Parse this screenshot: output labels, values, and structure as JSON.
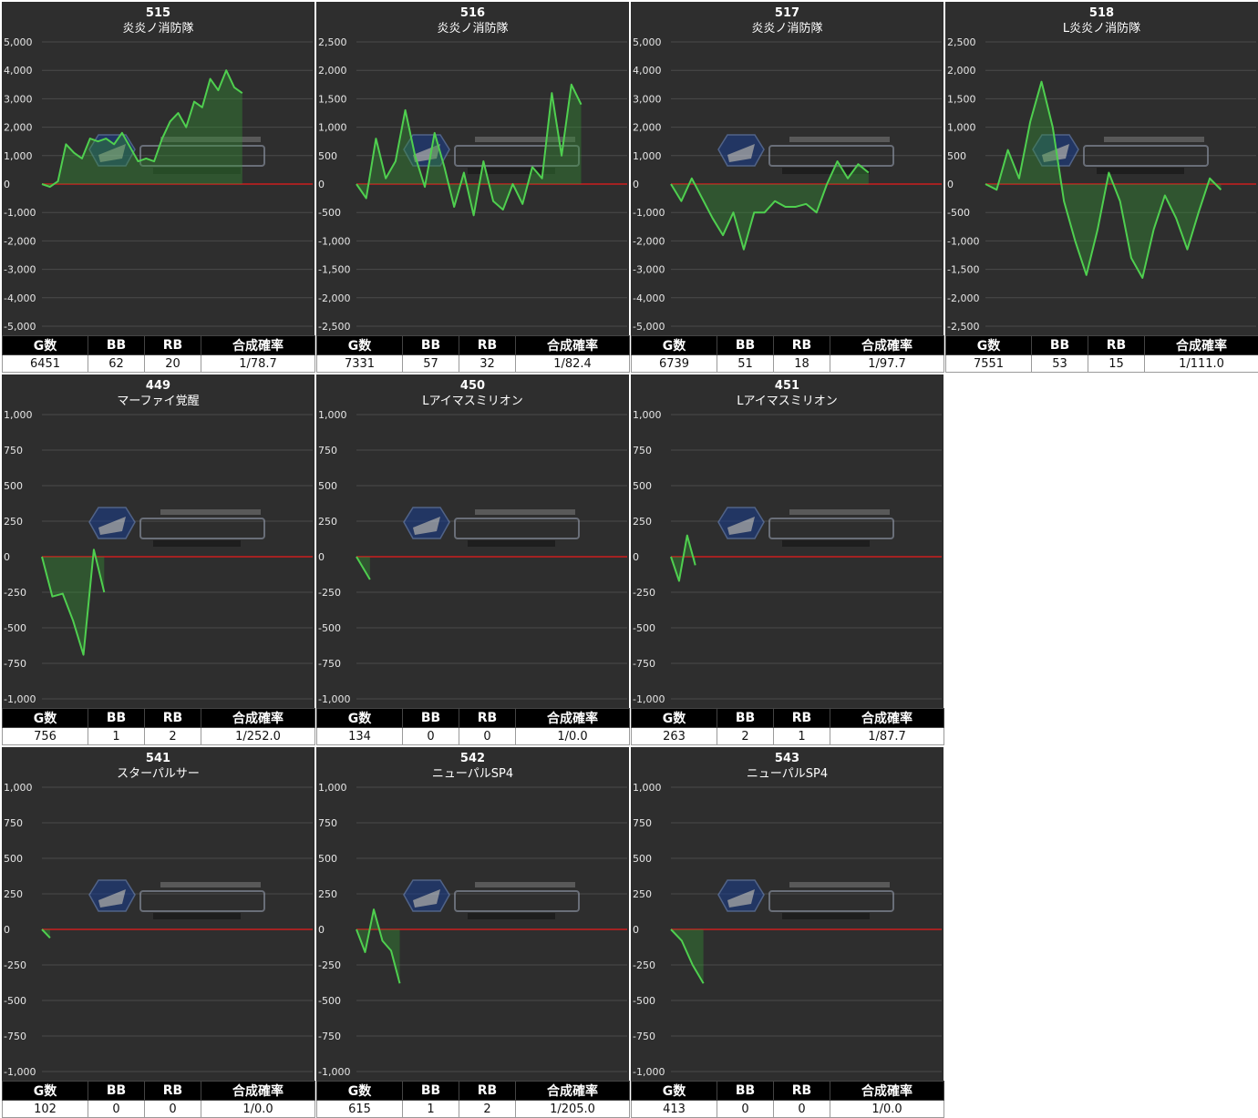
{
  "headers": {
    "games": "G数",
    "bb": "BB",
    "rb": "RB",
    "prob": "合成確率"
  },
  "chart_data": [
    {
      "type": "area",
      "unit": "515",
      "title": "炎炎ノ消防隊",
      "ylim": [
        -5000,
        5000
      ],
      "yticks": [
        5000,
        4000,
        3000,
        2000,
        1000,
        0,
        -1000,
        -2000,
        -3000,
        -4000,
        -5000
      ],
      "tick_labels": [
        "5,000",
        "4,000",
        "3,000",
        "2,000",
        "1,000",
        "0",
        "-1,000",
        "-2,000",
        "-3,000",
        "-4,000",
        "-5,000"
      ],
      "x_end": 0.74,
      "values": [
        0,
        -100,
        100,
        1400,
        1100,
        900,
        1600,
        1500,
        1600,
        1400,
        1800,
        1300,
        800,
        900,
        800,
        1600,
        2200,
        2500,
        2000,
        2900,
        2700,
        3700,
        3300,
        4000,
        3400,
        3200
      ],
      "stats": {
        "games": "6451",
        "bb": "62",
        "rb": "20",
        "prob": "1/78.7"
      }
    },
    {
      "type": "area",
      "unit": "516",
      "title": "炎炎ノ消防隊",
      "ylim": [
        -2500,
        2500
      ],
      "yticks": [
        2500,
        2000,
        1500,
        1000,
        500,
        0,
        -500,
        -1000,
        -1500,
        -2000,
        -2500
      ],
      "tick_labels": [
        "2,500",
        "2,000",
        "1,500",
        "1,000",
        "500",
        "0",
        "-500",
        "-1,000",
        "-1,500",
        "-2,000",
        "-2,500"
      ],
      "x_end": 0.83,
      "values": [
        0,
        -250,
        800,
        100,
        400,
        1300,
        500,
        -50,
        900,
        300,
        -400,
        200,
        -550,
        400,
        -300,
        -450,
        0,
        -350,
        300,
        100,
        1600,
        500,
        1750,
        1400
      ],
      "stats": {
        "games": "7331",
        "bb": "57",
        "rb": "32",
        "prob": "1/82.4"
      }
    },
    {
      "type": "area",
      "unit": "517",
      "title": "炎炎ノ消防隊",
      "ylim": [
        -5000,
        5000
      ],
      "yticks": [
        5000,
        4000,
        3000,
        2000,
        1000,
        0,
        -1000,
        -2000,
        -3000,
        -4000,
        -5000
      ],
      "tick_labels": [
        "5,000",
        "4,000",
        "3,000",
        "2,000",
        "1,000",
        "0",
        "-1,000",
        "-2,000",
        "-3,000",
        "-4,000",
        "-5,000"
      ],
      "x_end": 0.73,
      "values": [
        0,
        -600,
        200,
        -500,
        -1200,
        -1800,
        -1000,
        -2300,
        -1000,
        -1000,
        -600,
        -800,
        -800,
        -700,
        -1000,
        0,
        800,
        200,
        700,
        400
      ],
      "stats": {
        "games": "6739",
        "bb": "51",
        "rb": "18",
        "prob": "1/97.7"
      }
    },
    {
      "type": "area",
      "unit": "518",
      "title": "L炎炎ノ消防隊",
      "ylim": [
        -2500,
        2500
      ],
      "yticks": [
        2500,
        2000,
        1500,
        1000,
        500,
        0,
        -500,
        -1000,
        -1500,
        -2000,
        -2500
      ],
      "tick_labels": [
        "2,500",
        "2,000",
        "1,500",
        "1,000",
        "500",
        "0",
        "-500",
        "-1,000",
        "-1,500",
        "-2,000",
        "-2,500"
      ],
      "x_end": 0.87,
      "values": [
        0,
        -100,
        600,
        100,
        1100,
        1800,
        1000,
        -300,
        -1000,
        -1600,
        -800,
        200,
        -300,
        -1300,
        -1650,
        -800,
        -200,
        -600,
        -1150,
        -500,
        100,
        -100
      ],
      "stats": {
        "games": "7551",
        "bb": "53",
        "rb": "15",
        "prob": "1/111.0"
      }
    },
    {
      "type": "area",
      "unit": "449",
      "title": "マーファイ覚醒",
      "ylim": [
        -1000,
        1000
      ],
      "yticks": [
        1000,
        750,
        500,
        250,
        0,
        -250,
        -500,
        -750,
        -1000
      ],
      "tick_labels": [
        "1,000",
        "750",
        "500",
        "250",
        "0",
        "-250",
        "-500",
        "-750",
        "-1,000"
      ],
      "x_end": 0.23,
      "values": [
        0,
        -280,
        -260,
        -450,
        -690,
        50,
        -250
      ],
      "stats": {
        "games": "756",
        "bb": "1",
        "rb": "2",
        "prob": "1/252.0"
      }
    },
    {
      "type": "area",
      "unit": "450",
      "title": "Lアイマスミリオン",
      "ylim": [
        -1000,
        1000
      ],
      "yticks": [
        1000,
        750,
        500,
        250,
        0,
        -250,
        -500,
        -750,
        -1000
      ],
      "tick_labels": [
        "1,000",
        "750",
        "500",
        "250",
        "0",
        "-250",
        "-500",
        "-750",
        "-1,000"
      ],
      "x_end": 0.05,
      "values": [
        0,
        -160
      ],
      "stats": {
        "games": "134",
        "bb": "0",
        "rb": "0",
        "prob": "1/0.0"
      }
    },
    {
      "type": "area",
      "unit": "451",
      "title": "Lアイマスミリオン",
      "ylim": [
        -1000,
        1000
      ],
      "yticks": [
        1000,
        750,
        500,
        250,
        0,
        -250,
        -500,
        -750,
        -1000
      ],
      "tick_labels": [
        "1,000",
        "750",
        "500",
        "250",
        "0",
        "-250",
        "-500",
        "-750",
        "-1,000"
      ],
      "x_end": 0.09,
      "values": [
        0,
        -170,
        150,
        -60
      ],
      "stats": {
        "games": "263",
        "bb": "2",
        "rb": "1",
        "prob": "1/87.7"
      }
    },
    {
      "type": "area",
      "unit": "541",
      "title": "スターパルサー",
      "ylim": [
        -1000,
        1000
      ],
      "yticks": [
        1000,
        750,
        500,
        250,
        0,
        -250,
        -500,
        -750,
        -1000
      ],
      "tick_labels": [
        "1,000",
        "750",
        "500",
        "250",
        "0",
        "-250",
        "-500",
        "-750",
        "-1,000"
      ],
      "x_end": 0.03,
      "values": [
        0,
        -60
      ],
      "stats": {
        "games": "102",
        "bb": "0",
        "rb": "0",
        "prob": "1/0.0"
      }
    },
    {
      "type": "area",
      "unit": "542",
      "title": "ニューパルSP4",
      "ylim": [
        -1000,
        1000
      ],
      "yticks": [
        1000,
        750,
        500,
        250,
        0,
        -250,
        -500,
        -750,
        -1000
      ],
      "tick_labels": [
        "1,000",
        "750",
        "500",
        "250",
        "0",
        "-250",
        "-500",
        "-750",
        "-1,000"
      ],
      "x_end": 0.16,
      "values": [
        0,
        -160,
        140,
        -80,
        -150,
        -380
      ],
      "stats": {
        "games": "615",
        "bb": "1",
        "rb": "2",
        "prob": "1/205.0"
      }
    },
    {
      "type": "area",
      "unit": "543",
      "title": "ニューパルSP4",
      "ylim": [
        -1000,
        1000
      ],
      "yticks": [
        1000,
        750,
        500,
        250,
        0,
        -250,
        -500,
        -750,
        -1000
      ],
      "tick_labels": [
        "1,000",
        "750",
        "500",
        "250",
        "0",
        "-250",
        "-500",
        "-750",
        "-1,000"
      ],
      "x_end": 0.12,
      "values": [
        0,
        -80,
        -250,
        -380
      ],
      "stats": {
        "games": "413",
        "bb": "0",
        "rb": "0",
        "prob": "1/0.0"
      }
    }
  ]
}
